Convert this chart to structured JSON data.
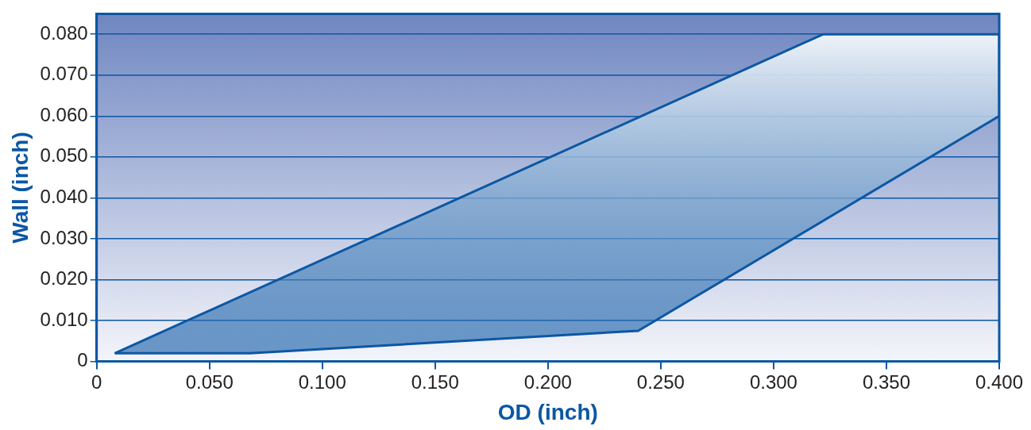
{
  "chart_data": {
    "type": "area",
    "xlabel": "OD (inch)",
    "ylabel": "Wall (inch)",
    "series": [
      {
        "color": "#0b57a4",
        "x": [
          0.008,
          0.322,
          0.4,
          0.4,
          0.24,
          0.068,
          0.008
        ],
        "values": [
          0.002,
          0.08,
          0.08,
          0.06,
          0.0075,
          0.002,
          0.002
        ]
      }
    ],
    "xlim": [
      0,
      0.4
    ],
    "xticks": [
      0,
      {
        "value": 0.05,
        "label": "0.050"
      },
      {
        "value": 0.1,
        "label": "0.100"
      },
      {
        "value": 0.15,
        "label": "0.150"
      },
      {
        "value": 0.2,
        "label": "0.200"
      },
      {
        "value": 0.25,
        "label": "0.250"
      },
      {
        "value": 0.3,
        "label": "0.300"
      },
      {
        "value": 0.35,
        "label": "0.350"
      },
      {
        "value": 0.4,
        "label": "0.400"
      }
    ],
    "ylim": [
      0,
      0.085
    ],
    "yticks": [
      0,
      {
        "value": 0.01,
        "label": "0.010"
      },
      {
        "value": 0.02,
        "label": "0.020"
      },
      {
        "value": 0.03,
        "label": "0.030"
      },
      {
        "value": 0.04,
        "label": "0.040"
      },
      {
        "value": 0.05,
        "label": "0.050"
      },
      {
        "value": 0.06,
        "label": "0.060"
      },
      {
        "value": 0.07,
        "label": "0.070"
      },
      {
        "value": 0.08,
        "label": "0.080"
      }
    ],
    "grid": "y",
    "legend": false,
    "marker": "none",
    "line_style": "solid"
  }
}
